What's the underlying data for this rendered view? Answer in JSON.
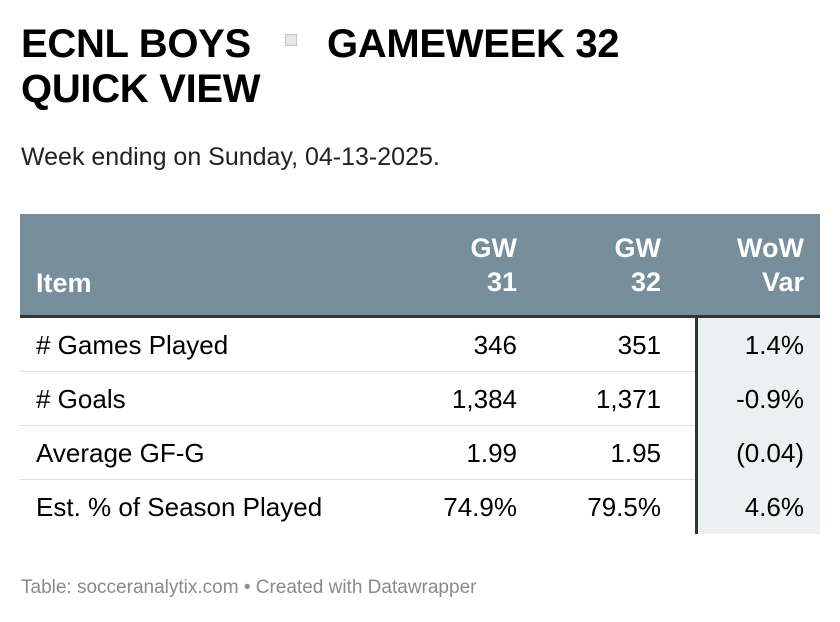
{
  "header": {
    "title_part1": "ECNL BOYS",
    "title_part2": "GAMEWEEK 32",
    "title_part3": "QUICK VIEW",
    "subtitle": "Week ending on Sunday, 04-13-2025."
  },
  "chart_data": {
    "type": "table",
    "columns": [
      {
        "line1": "",
        "line2": "Item"
      },
      {
        "line1": "GW",
        "line2": "31"
      },
      {
        "line1": "GW",
        "line2": "32"
      },
      {
        "line1": "WoW",
        "line2": "Var"
      }
    ],
    "rows": [
      {
        "item": "# Games Played",
        "gw31": "346",
        "gw32": "351",
        "wow": "1.4%"
      },
      {
        "item": "# Goals",
        "gw31": "1,384",
        "gw32": "1,371",
        "wow": "-0.9%"
      },
      {
        "item": "Average GF-G",
        "gw31": "1.99",
        "gw32": "1.95",
        "wow": "(0.04)"
      },
      {
        "item": "Est. % of Season Played",
        "gw31": "74.9%",
        "gw32": "79.5%",
        "wow": "4.6%"
      }
    ],
    "colors": {
      "header_bg": "#778f9c",
      "highlight_bg": "#eaf1f0"
    }
  },
  "footer": {
    "source": "Table: socceranalytix.com • Created with Datawrapper"
  }
}
